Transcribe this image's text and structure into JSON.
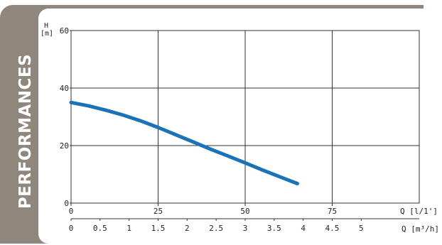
{
  "side_label": "PERFORMANCES",
  "colors": {
    "panel": "#8f877c",
    "curve": "#1a73b8",
    "grid": "#333333"
  },
  "chart_data": {
    "type": "line",
    "title": "",
    "y_axis": {
      "name": "H",
      "unit": "[m]",
      "ticks": [
        "60",
        "40",
        "20",
        "0"
      ],
      "range": [
        0,
        60
      ]
    },
    "x_axis_primary": {
      "label": "Q [l/1']",
      "ticks": [
        "0",
        "25",
        "50",
        "75"
      ],
      "range": [
        0,
        100
      ]
    },
    "x_axis_secondary": {
      "label": "Q [m³/h]",
      "ticks": [
        "0",
        "0.5",
        "1",
        "1.5",
        "2",
        "2.5",
        "3",
        "3.5",
        "4",
        "4.5",
        "5"
      ]
    },
    "grid": true,
    "series": [
      {
        "x": [
          0,
          5,
          10,
          15,
          20,
          25,
          30,
          35,
          40,
          45,
          50,
          55,
          60,
          65
        ],
        "y": [
          35,
          33.8,
          32.3,
          30.6,
          28.6,
          26.3,
          23.8,
          21.3,
          18.8,
          16.4,
          14,
          11.5,
          9.1,
          6.8
        ]
      }
    ]
  }
}
